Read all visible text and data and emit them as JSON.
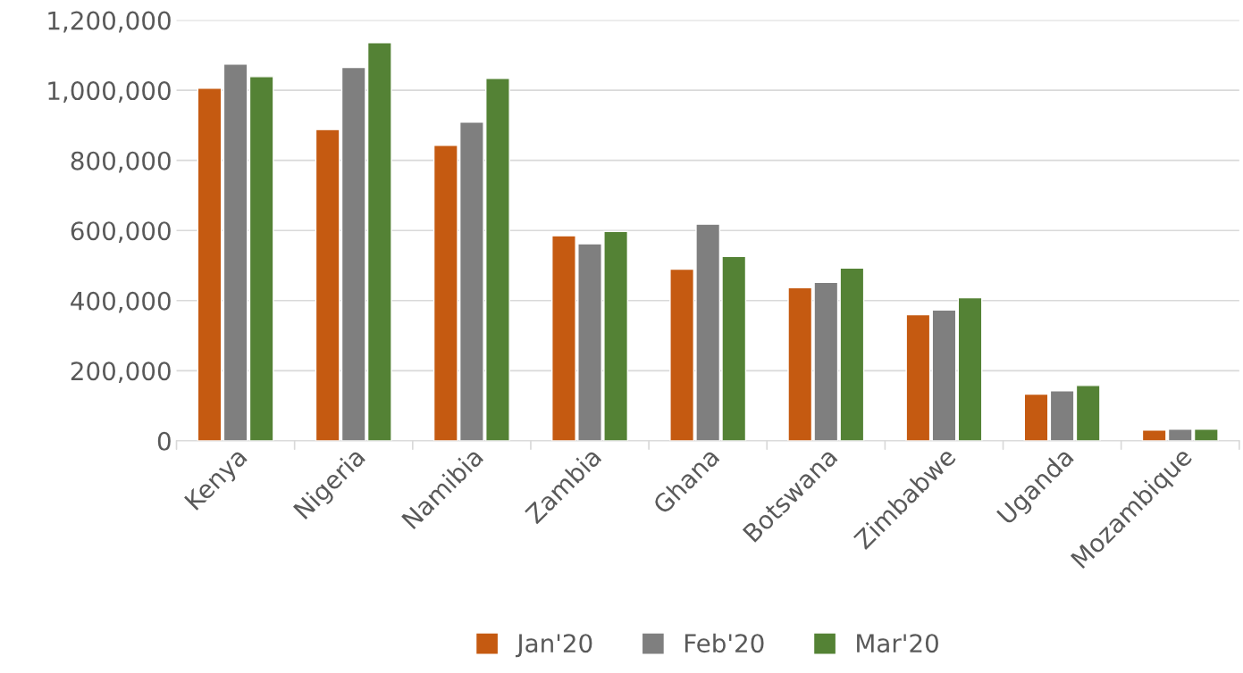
{
  "chart_data": {
    "type": "bar",
    "categories": [
      "Kenya",
      "Nigeria",
      "Namibia",
      "Zambia",
      "Ghana",
      "Botswana",
      "Zimbabwe",
      "Uganda",
      "Mozambique"
    ],
    "series": [
      {
        "name": "Jan'20",
        "color": "#c55a11",
        "values": [
          1006000,
          888000,
          843000,
          585000,
          490000,
          437000,
          360000,
          133000,
          31000
        ]
      },
      {
        "name": "Feb'20",
        "color": "#7f7f7f",
        "values": [
          1075000,
          1065000,
          909000,
          562000,
          618000,
          452000,
          373000,
          143000,
          33000
        ]
      },
      {
        "name": "Mar'20",
        "color": "#548235",
        "values": [
          1039000,
          1136000,
          1034000,
          597000,
          526000,
          493000,
          408000,
          158000,
          33000
        ]
      }
    ],
    "ylim": [
      0,
      1200000
    ],
    "yticks": [
      {
        "value": 0,
        "label": "0"
      },
      {
        "value": 200000,
        "label": "200,000"
      },
      {
        "value": 400000,
        "label": "400,000"
      },
      {
        "value": 600000,
        "label": "600,000"
      },
      {
        "value": 800000,
        "label": "800,000"
      },
      {
        "value": 1000000,
        "label": "1,000,000"
      },
      {
        "value": 1200000,
        "label": "1,200,000"
      }
    ],
    "grid": "y",
    "legend": "bottom"
  }
}
